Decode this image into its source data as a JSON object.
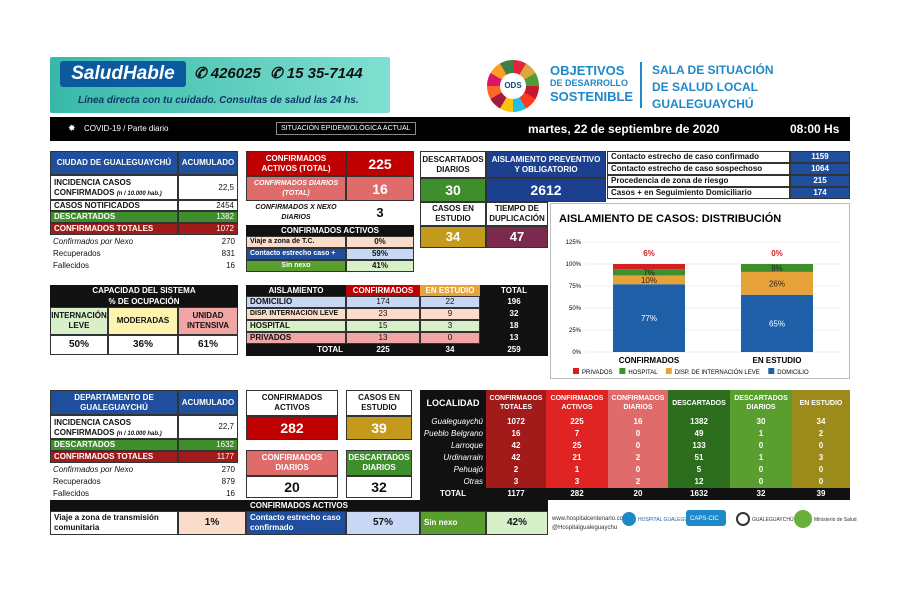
{
  "header": {
    "salud": "SaludHable",
    "phone": "426025",
    "whatsapp": "15 35-7144",
    "linea": "Línea directa con tu cuidado. Consultas de salud las 24 hs.",
    "ods": "ODS",
    "objetivos": [
      "OBJETIVOS",
      "DE DESARROLLO",
      "SOSTENIBLE"
    ],
    "sala": [
      "SALA DE SITUACIÓN",
      "DE SALUD LOCAL GUALEGUAYCHÚ"
    ]
  },
  "topbar": {
    "covid": "COVID-19 / Parte diario",
    "situacion": "SITUACIÓN EPIDEMIOLÓGICA ACTUAL",
    "date": "martes, 22 de septiembre de 2020",
    "time": "08:00 Hs"
  },
  "city": {
    "title": "CIUDAD DE GUALEGUAYCHÚ",
    "acum": "ACUMULADO",
    "rows": [
      [
        "INCIDENCIA CASOS CONFIRMADOS",
        "(n / 10.000 hab.)",
        "22,5"
      ],
      [
        "CASOS NOTIFICADOS",
        "",
        "2454"
      ],
      [
        "DESCARTADOS",
        "",
        "1382"
      ],
      [
        "CONFIRMADOS TOTALES",
        "",
        "1072"
      ],
      [
        "Confirmados por Nexo",
        "",
        "270"
      ],
      [
        "Recuperados",
        "",
        "831"
      ],
      [
        "Fallecidos",
        "",
        "16"
      ]
    ]
  },
  "conf": {
    "activos_label": "CONFIRMADOS ACTIVOS (TOTAL)",
    "activos": "225",
    "diarios_label": "CONFIRMADOS DIARIOS (TOTAL)",
    "diarios": "16",
    "nexo_label": "CONFIRMADOS X NEXO DIARIOS",
    "nexo": "3",
    "ca_title": "CONFIRMADOS ACTIVOS",
    "ca_rows": [
      [
        "Viaje a zona de T.C.",
        "0%"
      ],
      [
        "Contacto estrecho caso +",
        "59%"
      ],
      [
        "Sin nexo",
        "41%"
      ]
    ]
  },
  "mid": {
    "desc_label": "DESCARTADOS DIARIOS",
    "desc": "30",
    "aisl_label": "AISLAMIENTO PREVENTIVO Y OBLIGATORIO",
    "aisl": "2612",
    "estudio_label": "CASOS EN ESTUDIO",
    "estudio": "34",
    "dup_label": "TIEMPO DE DUPLICACIÓN",
    "dup": "47"
  },
  "contacts": [
    [
      "Contacto estrecho de caso confirmado",
      "1159"
    ],
    [
      "Contacto estrecho de caso sospechoso",
      "1064"
    ],
    [
      "Procedencia de zona de riesgo",
      "215"
    ],
    [
      "Casos + en Seguimiento Domiciliario",
      "174"
    ]
  ],
  "capacity": {
    "title": "CAPACIDAD DEL SISTEMA",
    "subtitle": "% DE OCUPACIÓN",
    "cols": [
      "INTERNACIÓN LEVE",
      "MODERADAS",
      "UNIDAD INTENSIVA"
    ],
    "vals": [
      "50%",
      "36%",
      "61%"
    ]
  },
  "aisl_table": {
    "headers": [
      "AISLAMIENTO",
      "CONFIRMADOS",
      "EN ESTUDIO",
      "TOTAL"
    ],
    "rows": [
      [
        "DOMICILIO",
        "174",
        "22",
        "196"
      ],
      [
        "DISP. INTERNACIÓN LEVE",
        "23",
        "9",
        "32"
      ],
      [
        "HOSPITAL",
        "15",
        "3",
        "18"
      ],
      [
        "PRIVADOS",
        "13",
        "0",
        "13"
      ]
    ],
    "total": [
      "TOTAL",
      "225",
      "34",
      "259"
    ]
  },
  "chart_data": {
    "type": "bar",
    "title": "AISLAMIENTO DE CASOS: DISTRIBUCIÓN",
    "categories": [
      "CONFIRMADOS",
      "EN ESTUDIO"
    ],
    "series": [
      {
        "name": "DOMICILIO",
        "values": [
          77,
          65
        ],
        "color": "#1f5fa8"
      },
      {
        "name": "DISP. DE INTERNACIÓN LEVE",
        "values": [
          10,
          26
        ],
        "color": "#e7a33a"
      },
      {
        "name": "HOSPITAL",
        "values": [
          7,
          9
        ],
        "color": "#3e8e2b"
      },
      {
        "name": "PRIVADOS",
        "values": [
          6,
          0
        ],
        "color": "#d42020"
      }
    ],
    "ylim": [
      0,
      125
    ],
    "yticks": [
      "0%",
      "25%",
      "50%",
      "75%",
      "100%",
      "125%"
    ],
    "labels": [
      [
        "77%",
        "65%"
      ],
      [
        "10%",
        "26%"
      ],
      [
        "7%",
        "9%"
      ],
      [
        "6%",
        "0%"
      ]
    ]
  },
  "dept": {
    "title": "DEPARTAMENTO DE GUALEGUAYCHÚ",
    "acum": "ACUMULADO",
    "rows": [
      [
        "INCIDENCIA CASOS CONFIRMADOS",
        "(n / 10.000 hab.)",
        "22,7"
      ],
      [
        "DESCARTADOS",
        "",
        "1632"
      ],
      [
        "CONFIRMADOS TOTALES",
        "",
        "1177"
      ],
      [
        "Confirmados por Nexo",
        "",
        "270"
      ],
      [
        "Recuperados",
        "",
        "879"
      ],
      [
        "Fallecidos",
        "",
        "16"
      ]
    ],
    "activos_label": "CONFIRMADOS ACTIVOS",
    "activos": "282",
    "estudio_label": "CASOS EN ESTUDIO",
    "estudio": "39",
    "diarios_label": "CONFIRMADOS DIARIOS",
    "diarios": "20",
    "desc_label": "DESCARTADOS DIARIOS",
    "desc": "32",
    "ca_title": "CONFIRMADOS ACTIVOS",
    "ca": [
      [
        "Viaje a zona de transmisión comunitaria",
        "1%"
      ],
      [
        "Contacto estrecho caso confirmado",
        "57%"
      ],
      [
        "Sin nexo",
        "42%"
      ]
    ]
  },
  "localidad": {
    "headers": [
      "LOCALIDAD",
      "CONFIRMADOS TOTALES",
      "CONFIRMADOS ACTIVOS",
      "CONFIRMADOS DIARIOS",
      "DESCARTADOS",
      "DESCARTADOS DIARIOS",
      "EN ESTUDIO"
    ],
    "rows": [
      [
        "Gualeguaychú",
        "1072",
        "225",
        "16",
        "1382",
        "30",
        "34"
      ],
      [
        "Pueblo Belgrano",
        "16",
        "7",
        "0",
        "49",
        "1",
        "2"
      ],
      [
        "Larroque",
        "42",
        "25",
        "0",
        "133",
        "0",
        "0"
      ],
      [
        "Urdinarrain",
        "42",
        "21",
        "2",
        "51",
        "1",
        "3"
      ],
      [
        "Pehuajó",
        "2",
        "1",
        "0",
        "5",
        "0",
        "0"
      ],
      [
        "Otras",
        "3",
        "3",
        "2",
        "12",
        "0",
        "0"
      ],
      [
        "TOTAL",
        "1177",
        "282",
        "20",
        "1632",
        "32",
        "39"
      ]
    ]
  },
  "footer": {
    "social": [
      "www.hospitalcentenario.com.ar",
      "@Hospitalgualeguaychu"
    ],
    "logos": [
      "HOSPITAL GUALEGUAYCHÚ",
      "CAPS-CIC",
      "GUALEGUAYCHÚ",
      "Ministerio de Salud"
    ]
  }
}
